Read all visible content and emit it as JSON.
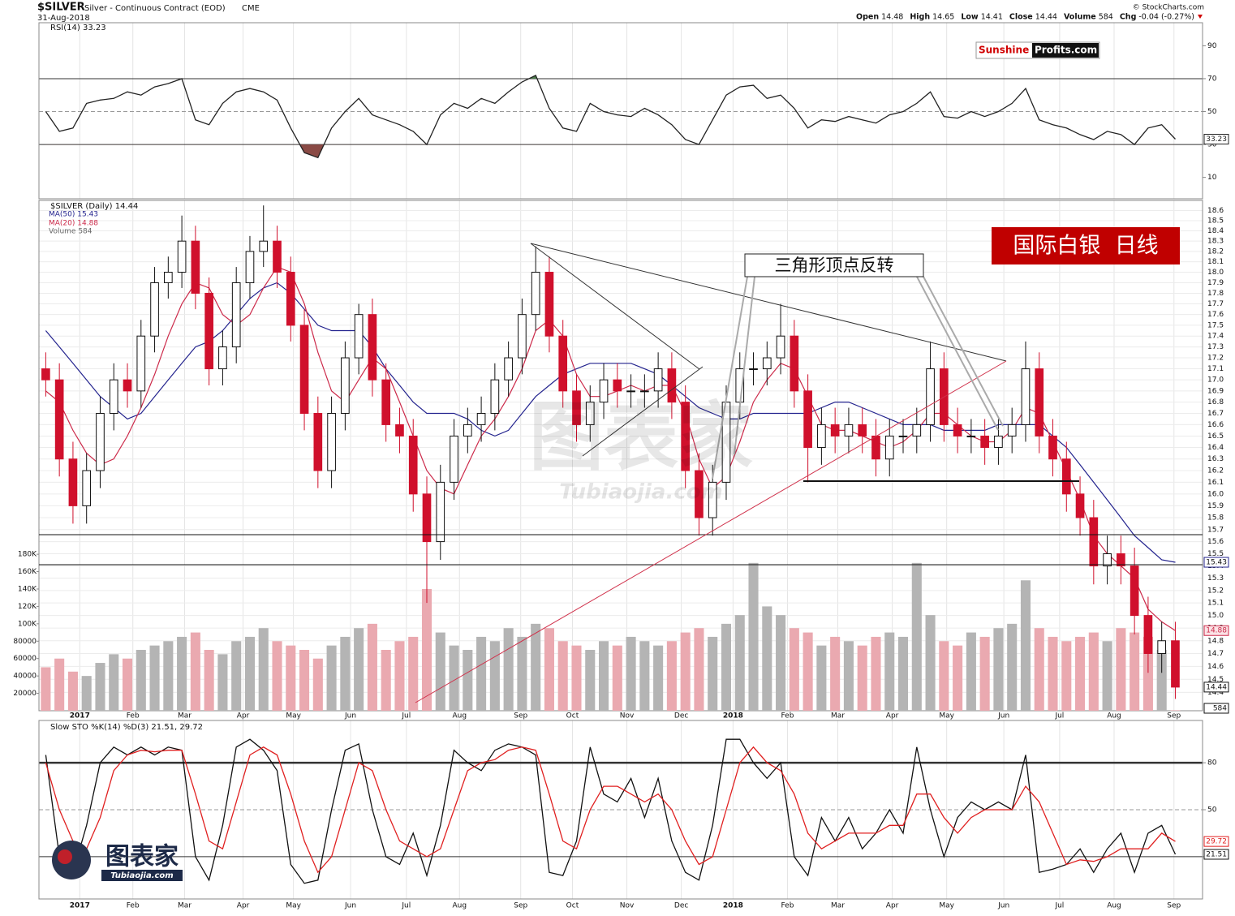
{
  "header": {
    "symbol": "$SILVER",
    "name": "Silver - Continuous Contract (EOD)",
    "exchange": "CME",
    "date": "31-Aug-2018",
    "copyright": "© StockCharts.com",
    "quote": [
      [
        "Open",
        "14.48"
      ],
      [
        "High",
        "14.65"
      ],
      [
        "Low",
        "14.41"
      ],
      [
        "Close",
        "14.44"
      ],
      [
        "Volume",
        "584"
      ],
      [
        "Chg",
        "-0.04 (-0.27%)"
      ]
    ]
  },
  "logo": [
    "Sunshine",
    "Profits.com"
  ],
  "watermark": [
    "图表家",
    "Tubiaojia.com"
  ],
  "chart_data": [
    {
      "type": "line",
      "title": "RSI(14) 33.23",
      "ylim": [
        -3,
        104
      ],
      "yticks": [
        10,
        30,
        50,
        70,
        90
      ],
      "levels": [
        30,
        50,
        70
      ],
      "color": "#222222",
      "fill_above": "#4e7d4e",
      "fill_below": "#8a4a45",
      "series": [
        {
          "color": "#222222",
          "values": [
            50,
            38,
            40,
            55,
            57,
            58,
            62,
            60,
            65,
            67,
            70,
            45,
            42,
            55,
            62,
            64,
            62,
            57,
            40,
            25,
            22,
            40,
            50,
            58,
            48,
            45,
            42,
            38,
            30,
            48,
            55,
            52,
            58,
            55,
            62,
            68,
            72,
            52,
            40,
            38,
            55,
            50,
            48,
            47,
            52,
            48,
            42,
            33,
            30,
            45,
            60,
            65,
            66,
            58,
            60,
            52,
            40,
            45,
            44,
            47,
            45,
            43,
            48,
            50,
            55,
            62,
            47,
            46,
            50,
            47,
            50,
            55,
            64,
            45,
            42,
            40,
            36,
            33,
            38,
            36,
            30,
            40,
            42,
            33.23
          ]
        }
      ]
    },
    {
      "type": "candlestick",
      "log_scale": true,
      "grid": true,
      "xlim": [
        -0.5,
        85
      ],
      "ylim": [
        14.26,
        18.7
      ],
      "xticks": [
        {
          "value": 2.5,
          "label": "2017"
        },
        {
          "value": 6.4,
          "label": "Feb"
        },
        {
          "value": 10.2,
          "label": "Mar"
        },
        {
          "value": 14.5,
          "label": "Apr"
        },
        {
          "value": 18.2,
          "label": "May"
        },
        {
          "value": 22.4,
          "label": "Jun"
        },
        {
          "value": 26.5,
          "label": "Jul"
        },
        {
          "value": 30.4,
          "label": "Aug"
        },
        {
          "value": 34.9,
          "label": "Sep"
        },
        {
          "value": 38.7,
          "label": "Oct"
        },
        {
          "value": 42.7,
          "label": "Nov"
        },
        {
          "value": 46.7,
          "label": "Dec"
        },
        {
          "value": 50.5,
          "label": "2018"
        },
        {
          "value": 54.5,
          "label": "Feb"
        },
        {
          "value": 58.2,
          "label": "Mar"
        },
        {
          "value": 62.2,
          "label": "Apr"
        },
        {
          "value": 66.2,
          "label": "May"
        },
        {
          "value": 70.4,
          "label": "Jun"
        },
        {
          "value": 74.5,
          "label": "Jul"
        },
        {
          "value": 78.5,
          "label": "Aug"
        },
        {
          "value": 82.9,
          "label": "Sep"
        }
      ],
      "yticks": [
        14.4,
        14.5,
        14.6,
        14.7,
        14.8,
        14.9,
        {
          "value": 15,
          "label": "15.0"
        },
        15.1,
        15.2,
        15.3,
        15.4,
        15.5,
        15.6,
        15.7,
        15.8,
        15.9,
        {
          "value": 16,
          "label": "16.0"
        },
        16.1,
        16.2,
        16.3,
        16.4,
        16.5,
        16.6,
        16.7,
        16.8,
        16.9,
        {
          "value": 17,
          "label": "17.0"
        },
        17.1,
        17.2,
        17.3,
        17.4,
        17.5,
        17.6,
        17.7,
        17.8,
        17.9,
        {
          "value": 18,
          "label": "18.0"
        },
        18.1,
        18.2,
        18.3,
        18.4,
        18.5,
        18.6
      ],
      "up_color": "#111111",
      "down_color": "#d0102c",
      "ohlc": {
        "name": "$SILVER (Daily) 14.44",
        "open": [
          17.1,
          17.0,
          16.3,
          15.9,
          16.2,
          16.7,
          17.0,
          16.9,
          17.4,
          17.9,
          18.0,
          18.3,
          17.8,
          17.1,
          17.3,
          17.9,
          18.2,
          18.3,
          18.0,
          17.5,
          16.7,
          16.2,
          16.7,
          17.2,
          17.6,
          17.0,
          16.6,
          16.5,
          16.0,
          15.6,
          16.1,
          16.5,
          16.6,
          16.7,
          17.0,
          17.2,
          17.6,
          18.0,
          17.4,
          16.9,
          16.6,
          16.8,
          17.0,
          16.9,
          16.9,
          16.9,
          17.1,
          16.8,
          16.2,
          15.8,
          16.1,
          16.8,
          17.1,
          17.1,
          17.2,
          17.4,
          16.9,
          16.4,
          16.6,
          16.5,
          16.6,
          16.5,
          16.3,
          16.5,
          16.5,
          16.6,
          17.1,
          16.6,
          16.5,
          16.5,
          16.4,
          16.5,
          16.6,
          17.1,
          16.5,
          16.3,
          16.0,
          15.8,
          15.4,
          15.5,
          15.4,
          15.0,
          14.7,
          14.8
        ],
        "high": [
          17.25,
          17.15,
          16.45,
          16.35,
          16.85,
          17.15,
          17.15,
          17.55,
          18.05,
          18.15,
          18.55,
          18.45,
          17.95,
          17.45,
          18.05,
          18.35,
          18.65,
          18.45,
          18.15,
          17.65,
          16.85,
          16.85,
          17.35,
          17.7,
          17.75,
          17.15,
          16.75,
          16.65,
          16.15,
          16.25,
          16.65,
          16.75,
          16.85,
          17.15,
          17.35,
          17.75,
          18.25,
          18.15,
          17.55,
          17.05,
          16.95,
          17.15,
          17.15,
          17.05,
          17.05,
          17.25,
          17.25,
          16.95,
          16.35,
          16.25,
          16.95,
          17.25,
          17.25,
          17.35,
          17.7,
          17.55,
          17.05,
          16.75,
          16.75,
          16.75,
          16.75,
          16.65,
          16.65,
          16.65,
          16.75,
          17.35,
          17.25,
          16.75,
          16.65,
          16.65,
          16.65,
          16.75,
          17.35,
          17.25,
          16.65,
          16.45,
          16.15,
          15.95,
          15.65,
          15.65,
          15.55,
          15.15,
          14.95,
          14.95
        ],
        "low": [
          16.85,
          16.15,
          15.75,
          15.75,
          16.05,
          16.55,
          16.75,
          16.75,
          17.25,
          17.75,
          17.85,
          17.65,
          16.95,
          16.95,
          17.15,
          17.75,
          18.05,
          17.85,
          17.35,
          16.55,
          16.05,
          16.05,
          16.55,
          17.05,
          16.85,
          16.45,
          16.35,
          15.85,
          15.1,
          15.45,
          15.95,
          16.35,
          16.45,
          16.55,
          16.85,
          17.05,
          17.45,
          17.25,
          16.75,
          16.45,
          16.45,
          16.65,
          16.75,
          16.75,
          16.75,
          16.75,
          16.65,
          16.05,
          15.65,
          15.65,
          15.95,
          16.65,
          16.95,
          16.95,
          17.05,
          16.75,
          16.1,
          16.25,
          16.35,
          16.35,
          16.35,
          16.15,
          16.15,
          16.35,
          16.35,
          16.45,
          16.45,
          16.35,
          16.35,
          16.25,
          16.25,
          16.35,
          16.45,
          16.35,
          16.15,
          15.85,
          15.65,
          15.25,
          15.25,
          15.25,
          14.85,
          14.55,
          14.55,
          14.35
        ],
        "close": [
          17.0,
          16.3,
          15.9,
          16.2,
          16.7,
          17.0,
          16.9,
          17.4,
          17.9,
          18.0,
          18.3,
          17.8,
          17.1,
          17.3,
          17.9,
          18.2,
          18.3,
          18.0,
          17.5,
          16.7,
          16.2,
          16.7,
          17.2,
          17.6,
          17.0,
          16.6,
          16.5,
          16.0,
          15.6,
          16.1,
          16.5,
          16.6,
          16.7,
          17.0,
          17.2,
          17.6,
          18.0,
          17.4,
          16.9,
          16.6,
          16.8,
          17.0,
          16.9,
          16.9,
          16.9,
          17.1,
          16.8,
          16.2,
          15.8,
          16.1,
          16.8,
          17.1,
          17.1,
          17.2,
          17.4,
          16.9,
          16.4,
          16.6,
          16.5,
          16.6,
          16.5,
          16.3,
          16.5,
          16.5,
          16.6,
          17.1,
          16.6,
          16.5,
          16.5,
          16.4,
          16.5,
          16.6,
          17.1,
          16.5,
          16.3,
          16.0,
          15.8,
          15.4,
          15.5,
          15.4,
          15.0,
          14.7,
          14.8,
          14.44
        ]
      },
      "series": [
        {
          "name": "MA(50) 15.43",
          "color": "#23238e",
          "values": [
            17.45,
            17.3,
            17.15,
            17.0,
            16.85,
            16.75,
            16.65,
            16.7,
            16.85,
            17.0,
            17.15,
            17.3,
            17.35,
            17.45,
            17.6,
            17.75,
            17.85,
            17.9,
            17.8,
            17.65,
            17.5,
            17.45,
            17.45,
            17.45,
            17.3,
            17.1,
            16.95,
            16.8,
            16.7,
            16.7,
            16.7,
            16.65,
            16.55,
            16.5,
            16.55,
            16.7,
            16.85,
            16.95,
            17.05,
            17.1,
            17.15,
            17.15,
            17.15,
            17.15,
            17.1,
            17.05,
            16.95,
            16.85,
            16.75,
            16.7,
            16.65,
            16.65,
            16.7,
            16.7,
            16.7,
            16.7,
            16.7,
            16.75,
            16.8,
            16.8,
            16.75,
            16.7,
            16.65,
            16.6,
            16.6,
            16.6,
            16.55,
            16.55,
            16.55,
            16.55,
            16.6,
            16.6,
            16.6,
            16.6,
            16.5,
            16.4,
            16.25,
            16.1,
            15.95,
            15.8,
            15.65,
            15.55,
            15.45,
            15.43
          ]
        },
        {
          "name": "MA(20) 14.88",
          "color": "#cc2a4a",
          "values": [
            16.9,
            16.8,
            16.55,
            16.35,
            16.25,
            16.3,
            16.5,
            16.75,
            17.05,
            17.4,
            17.7,
            17.9,
            17.85,
            17.6,
            17.5,
            17.6,
            17.85,
            18.05,
            18.0,
            17.7,
            17.25,
            16.9,
            16.8,
            17.0,
            17.2,
            17.1,
            16.8,
            16.5,
            16.2,
            16.05,
            16.0,
            16.25,
            16.5,
            16.65,
            16.85,
            17.1,
            17.45,
            17.55,
            17.4,
            17.05,
            16.85,
            16.85,
            16.9,
            16.95,
            16.9,
            16.95,
            16.95,
            16.7,
            16.3,
            16.05,
            16.15,
            16.45,
            16.8,
            17.0,
            17.15,
            17.1,
            16.85,
            16.6,
            16.55,
            16.55,
            16.5,
            16.45,
            16.4,
            16.45,
            16.55,
            16.7,
            16.7,
            16.6,
            16.5,
            16.45,
            16.45,
            16.55,
            16.75,
            16.7,
            16.45,
            16.2,
            15.95,
            15.65,
            15.5,
            15.4,
            15.3,
            15.05,
            14.95,
            14.88
          ]
        }
      ],
      "volume": {
        "name": "Volume 584",
        "up_color": "#b4b4b4",
        "down_color": "#eaa9b0",
        "ylim": [
          0,
          587000
        ],
        "yticks": [
          20000,
          40000,
          60000,
          80000,
          {
            "value": 100000,
            "label": "100K"
          },
          {
            "value": 120000,
            "label": "120K"
          },
          {
            "value": 140000,
            "label": "140K"
          },
          {
            "value": 160000,
            "label": "160K"
          },
          {
            "value": 180000,
            "label": "180K"
          }
        ],
        "values": [
          50000,
          60000,
          45000,
          40000,
          55000,
          65000,
          60000,
          70000,
          75000,
          80000,
          85000,
          90000,
          70000,
          65000,
          80000,
          85000,
          95000,
          80000,
          75000,
          70000,
          60000,
          75000,
          85000,
          95000,
          100000,
          70000,
          80000,
          85000,
          140000,
          90000,
          75000,
          70000,
          85000,
          80000,
          95000,
          85000,
          100000,
          95000,
          80000,
          75000,
          70000,
          80000,
          75000,
          85000,
          80000,
          75000,
          80000,
          90000,
          95000,
          85000,
          100000,
          110000,
          170000,
          120000,
          110000,
          95000,
          90000,
          75000,
          85000,
          80000,
          75000,
          85000,
          90000,
          85000,
          170000,
          110000,
          80000,
          75000,
          90000,
          85000,
          95000,
          100000,
          150000,
          95000,
          85000,
          80000,
          85000,
          90000,
          80000,
          95000,
          90000,
          85000,
          70000,
          584
        ]
      },
      "annotations": [
        "三角形顶点反转",
        "国际白银  日线"
      ]
    },
    {
      "type": "line",
      "title": "Slow STO %K(14) %D(3) 21.51, 29.72",
      "ylim": [
        -7,
        107
      ],
      "yticks": [
        20,
        50,
        80
      ],
      "levels": [
        20,
        50,
        80
      ],
      "series": [
        {
          "color": "#111111",
          "values": [
            85,
            20,
            10,
            40,
            80,
            90,
            85,
            90,
            85,
            90,
            88,
            20,
            5,
            40,
            90,
            95,
            88,
            75,
            15,
            3,
            5,
            50,
            88,
            92,
            50,
            20,
            15,
            35,
            8,
            40,
            88,
            80,
            75,
            88,
            92,
            90,
            85,
            10,
            8,
            30,
            90,
            60,
            55,
            70,
            45,
            70,
            30,
            10,
            5,
            40,
            95,
            95,
            80,
            70,
            80,
            20,
            8,
            45,
            30,
            45,
            25,
            35,
            50,
            35,
            90,
            50,
            20,
            45,
            55,
            50,
            55,
            50,
            85,
            10,
            12,
            15,
            25,
            10,
            25,
            35,
            10,
            35,
            40,
            21.51
          ]
        },
        {
          "color": "#e02020",
          "values": [
            80,
            50,
            30,
            25,
            45,
            75,
            85,
            88,
            87,
            88,
            88,
            60,
            30,
            25,
            55,
            85,
            90,
            85,
            60,
            30,
            10,
            20,
            50,
            80,
            75,
            50,
            30,
            25,
            20,
            25,
            50,
            75,
            80,
            82,
            88,
            90,
            88,
            60,
            30,
            25,
            50,
            65,
            65,
            60,
            55,
            60,
            50,
            30,
            15,
            20,
            50,
            80,
            90,
            80,
            75,
            60,
            35,
            25,
            30,
            35,
            35,
            35,
            40,
            40,
            60,
            60,
            45,
            35,
            45,
            50,
            50,
            50,
            65,
            55,
            35,
            15,
            18,
            17,
            20,
            25,
            25,
            25,
            35,
            29.72
          ]
        }
      ]
    }
  ]
}
